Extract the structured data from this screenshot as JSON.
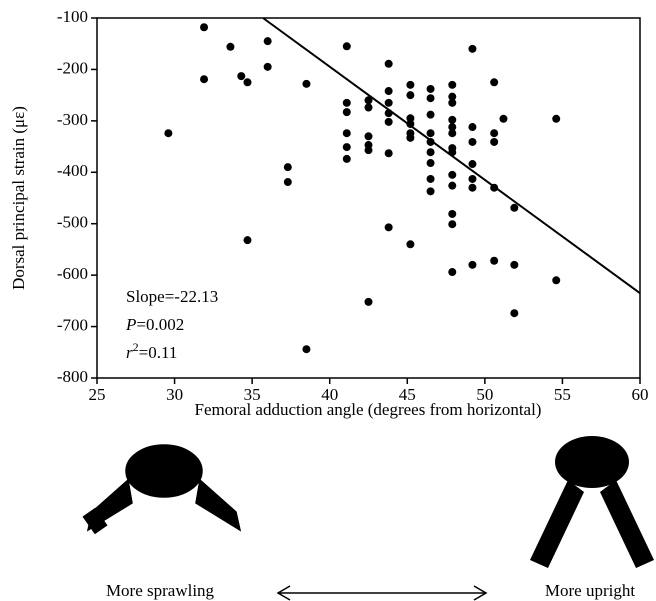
{
  "chart_data": {
    "type": "scatter",
    "x_label": "Femoral adduction angle (degrees from horizontal)",
    "y_label": "Dorsal principal strain (με)",
    "xlim": [
      25,
      60
    ],
    "ylim": [
      -800,
      -100
    ],
    "xticks": [
      25,
      30,
      35,
      40,
      45,
      50,
      55,
      60
    ],
    "yticks": [
      -100,
      -200,
      -300,
      -400,
      -500,
      -600,
      -700,
      -800
    ],
    "color": "#000000",
    "x": [
      29.6,
      31.9,
      31.9,
      33.6,
      34.3,
      34.7,
      34.7,
      36.0,
      36.0,
      37.3,
      37.3,
      38.5,
      38.5,
      41.1,
      41.1,
      41.1,
      41.1,
      41.1,
      41.1,
      42.5,
      42.5,
      42.5,
      42.5,
      42.5,
      42.5,
      43.8,
      43.8,
      43.8,
      43.8,
      43.8,
      43.8,
      43.8,
      45.2,
      45.2,
      45.2,
      45.2,
      45.2,
      45.2,
      45.2,
      46.5,
      46.5,
      46.5,
      46.5,
      46.5,
      46.5,
      46.5,
      46.5,
      46.5,
      47.9,
      47.9,
      47.9,
      47.9,
      47.9,
      47.9,
      47.9,
      47.9,
      47.9,
      47.9,
      47.9,
      47.9,
      47.9,
      49.2,
      49.2,
      49.2,
      49.2,
      49.2,
      49.2,
      49.2,
      50.6,
      50.6,
      50.6,
      50.6,
      50.6,
      51.2,
      51.9,
      51.9,
      51.9,
      54.6,
      54.6
    ],
    "values": [
      -324,
      -118,
      -219,
      -156,
      -213,
      -225,
      -532,
      -145,
      -195,
      -390,
      -419,
      -228,
      -744,
      -155,
      -265,
      -283,
      -324,
      -351,
      -374,
      -260,
      -274,
      -330,
      -347,
      -357,
      -652,
      -189,
      -242,
      -265,
      -285,
      -302,
      -363,
      -507,
      -230,
      -250,
      -295,
      -306,
      -324,
      -333,
      -540,
      -238,
      -256,
      -288,
      -324,
      -341,
      -361,
      -382,
      -413,
      -437,
      -230,
      -253,
      -265,
      -298,
      -312,
      -324,
      -353,
      -361,
      -405,
      -426,
      -481,
      -501,
      -594,
      -160,
      -312,
      -341,
      -384,
      -413,
      -430,
      -580,
      -225,
      -324,
      -341,
      -430,
      -572,
      -296,
      -469,
      -580,
      -674,
      -296,
      -610
    ],
    "fit_line": {
      "x": [
        35.7,
        60
      ],
      "values": [
        -100,
        -635
      ]
    },
    "annotations": [
      {
        "text": "Slope=-22.13"
      },
      {
        "symbol": "P",
        "text": "=0.002"
      },
      {
        "symbol": "r",
        "sup": "2",
        "text": "=0.11"
      }
    ]
  },
  "diagram": {
    "left_label": "More sprawling",
    "right_label": "More upright"
  }
}
